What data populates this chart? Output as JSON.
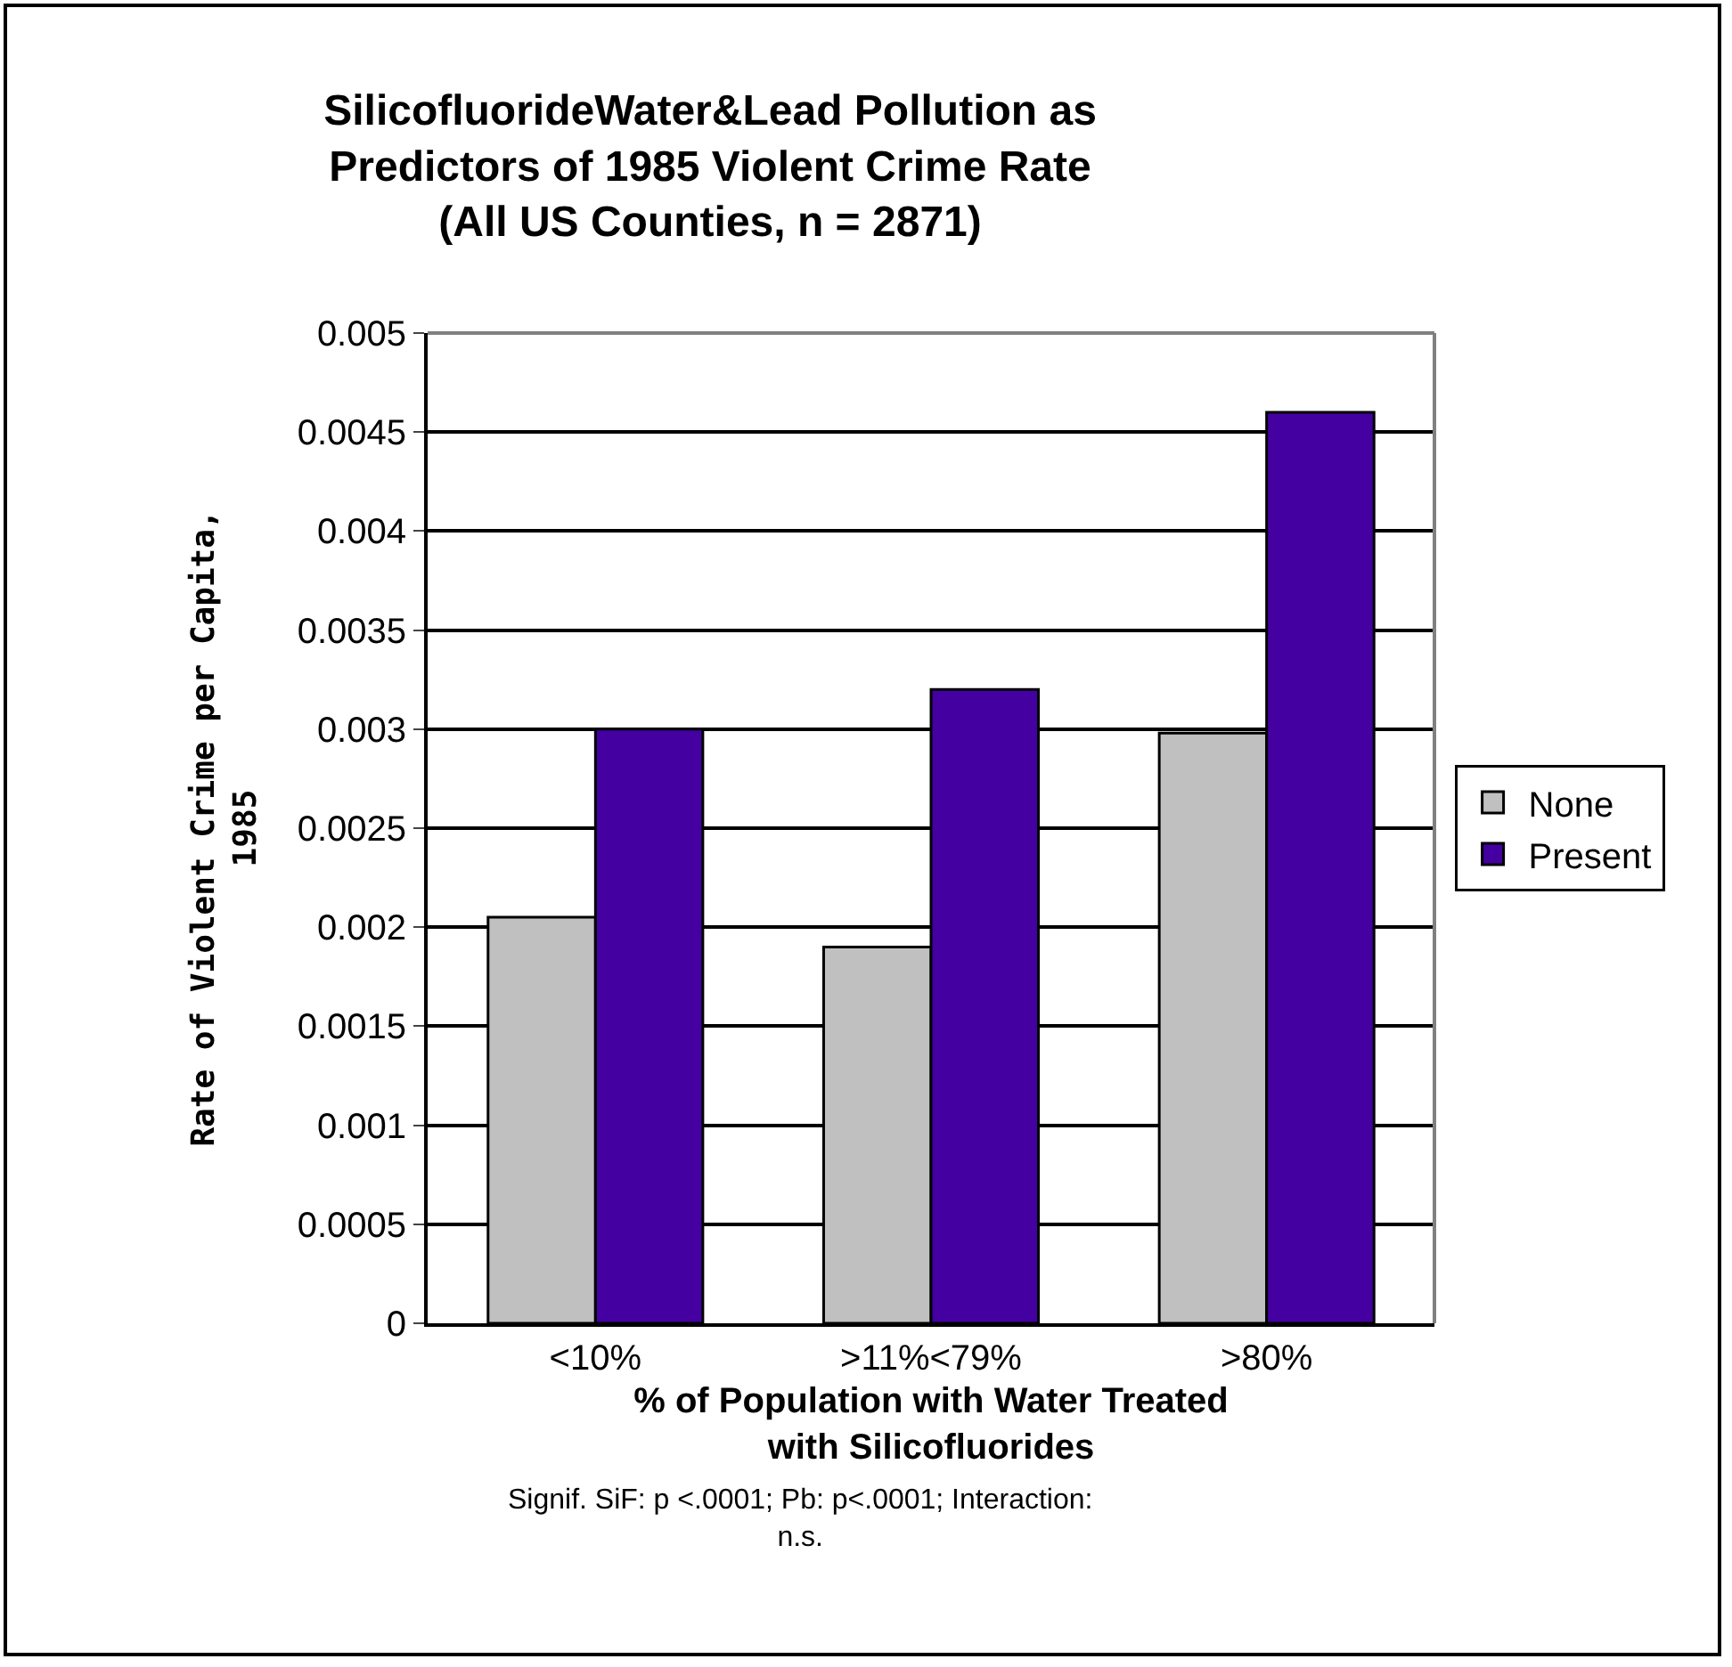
{
  "chart_data": {
    "type": "bar",
    "title": "SilicofluorideWater&Lead Pollution as\nPredictors of 1985 Violent Crime Rate\n(All US Counties, n = 2871)",
    "xlabel": "% of Population with Water Treated\nwith Silicofluorides",
    "ylabel": "Rate of Violent Crime per Capita,\n1985",
    "annotations": [
      "Signif. SiF: p <.0001; Pb: p<.0001; Interaction:\nn.s."
    ],
    "categories": [
      "<10%",
      ">11%<79%",
      ">80%"
    ],
    "series": [
      {
        "name": "None",
        "color": "#c0c0c0",
        "values": [
          0.00205,
          0.0019,
          0.00298
        ]
      },
      {
        "name": "Present",
        "color": "#4400a0",
        "values": [
          0.003,
          0.0032,
          0.0046
        ]
      }
    ],
    "ylim": [
      0,
      0.005
    ],
    "yticks": [
      0,
      0.0005,
      0.001,
      0.0015,
      0.002,
      0.0025,
      0.003,
      0.0035,
      0.004,
      0.0045,
      0.005
    ],
    "grid": "y",
    "legend": "right"
  }
}
